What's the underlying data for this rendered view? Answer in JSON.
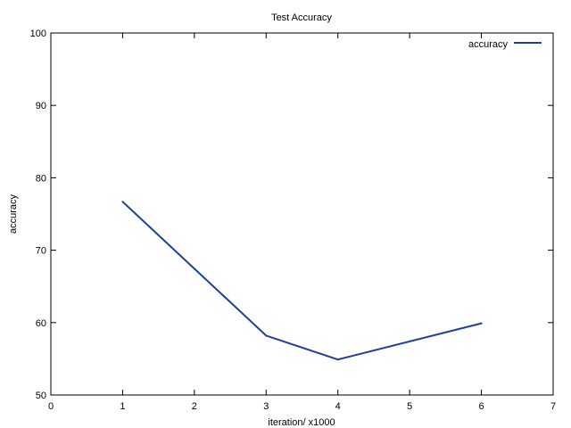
{
  "chart_data": {
    "type": "line",
    "title": "Test Accuracy",
    "xlabel": "iteration/ x1000",
    "ylabel": "accuracy",
    "xlim": [
      0,
      7
    ],
    "ylim": [
      50,
      100
    ],
    "x_ticks": [
      "0",
      "1",
      "2",
      "3",
      "4",
      "5",
      "6",
      "7"
    ],
    "y_ticks": [
      "50",
      "60",
      "70",
      "80",
      "90",
      "100"
    ],
    "grid": false,
    "legend_position": "top-right",
    "series": [
      {
        "name": "accuracy",
        "color": "#1f3f99",
        "x": [
          1,
          3,
          4,
          6
        ],
        "y": [
          76.7,
          58.2,
          54.9,
          59.9
        ]
      }
    ]
  }
}
